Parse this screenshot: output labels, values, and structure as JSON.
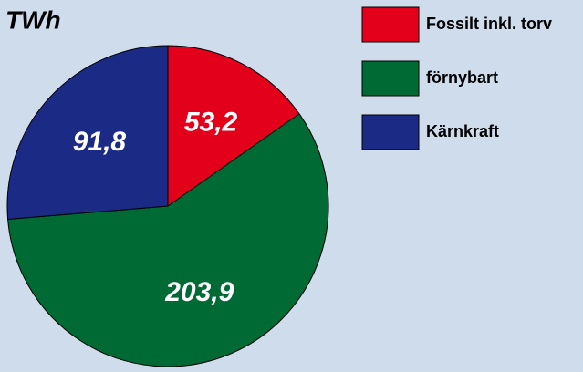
{
  "chart_data": {
    "type": "pie",
    "title": "TWh",
    "categories": [
      "Fossilt inkl. torv",
      "förnybart",
      "Kärnkraft"
    ],
    "values": [
      53.2,
      203.9,
      91.8
    ],
    "value_labels": [
      "53,2",
      "203,9",
      "91,8"
    ],
    "colors": [
      "#e3001b",
      "#006a35",
      "#1b2a84"
    ],
    "legend": "right"
  }
}
